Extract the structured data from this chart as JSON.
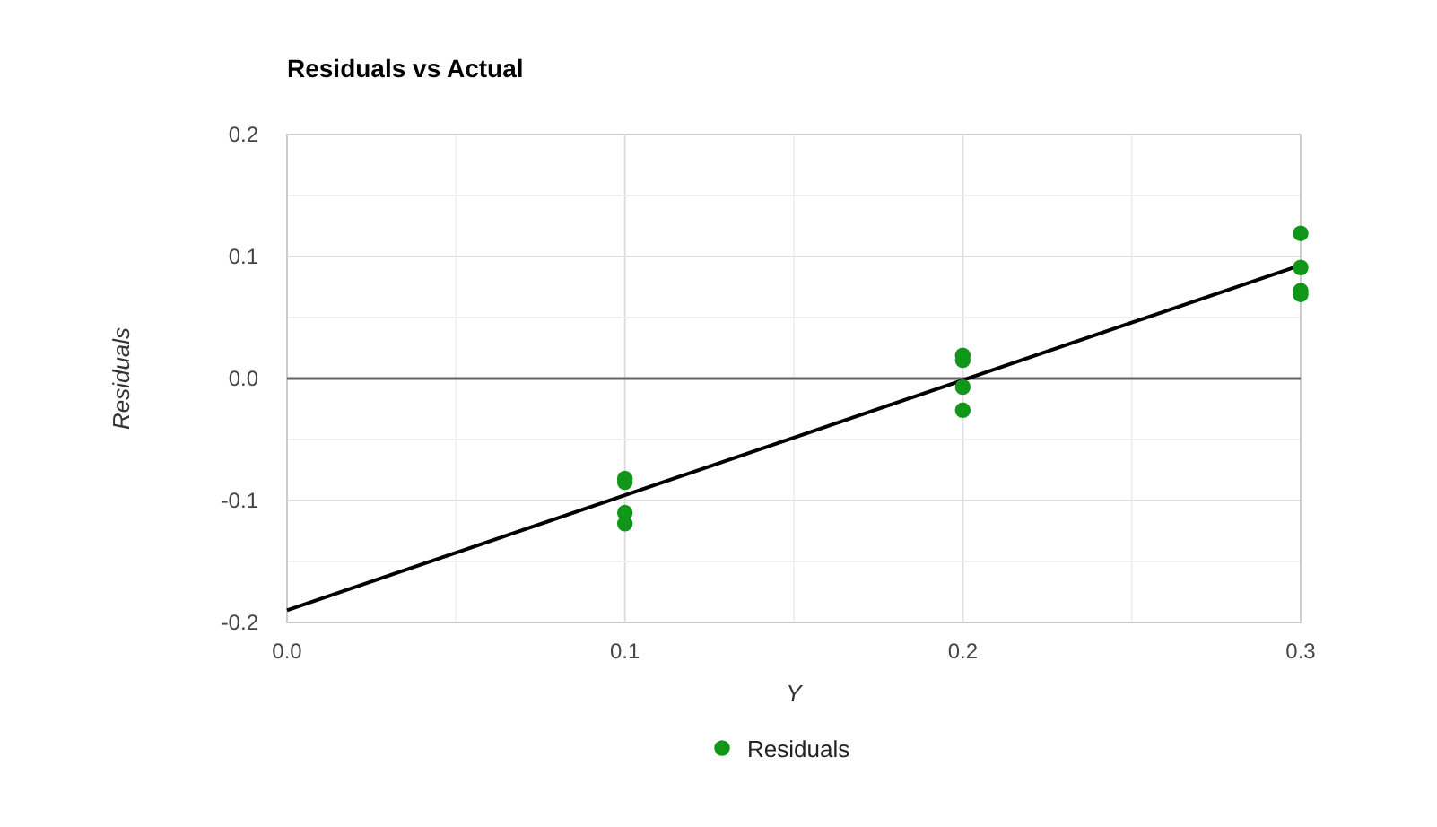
{
  "chart_data": {
    "type": "scatter",
    "title": "Residuals vs Actual",
    "xlabel": "Y",
    "ylabel": "Residuals",
    "xlim": [
      0,
      0.3
    ],
    "ylim": [
      -0.2,
      0.2
    ],
    "xticks": [
      {
        "value": 0,
        "label": "0.0"
      },
      {
        "value": 0.05,
        "label": null
      },
      0.1,
      {
        "value": 0.15,
        "label": null
      },
      0.2,
      {
        "value": 0.25,
        "label": null
      },
      0.3
    ],
    "yticks": [
      -0.2,
      {
        "value": -0.15,
        "label": null
      },
      -0.1,
      {
        "value": -0.05,
        "label": null
      },
      {
        "value": 0,
        "label": "0.0"
      },
      {
        "value": 0.05,
        "label": null
      },
      0.1,
      {
        "value": 0.15,
        "label": null
      },
      0.2
    ],
    "grid": true,
    "legend": "bottom",
    "marker": "circle",
    "ref_lines": [
      {
        "axis": "y",
        "value": 0,
        "color": "#666666"
      }
    ],
    "series": [
      {
        "name": "Residuals",
        "color": "#109618",
        "x": [
          0.1,
          0.1,
          0.1,
          0.1,
          0.2,
          0.2,
          0.2,
          0.2,
          0.3,
          0.3,
          0.3,
          0.3
        ],
        "values": [
          -0.082,
          -0.085,
          -0.11,
          -0.119,
          0.019,
          0.015,
          -0.007,
          -0.026,
          0.119,
          0.091,
          0.072,
          0.069
        ]
      },
      {
        "type": "line",
        "color": "#000000",
        "x": [
          0,
          0.3
        ],
        "values": [
          -0.19,
          0.093
        ],
        "marker": "none"
      }
    ]
  }
}
